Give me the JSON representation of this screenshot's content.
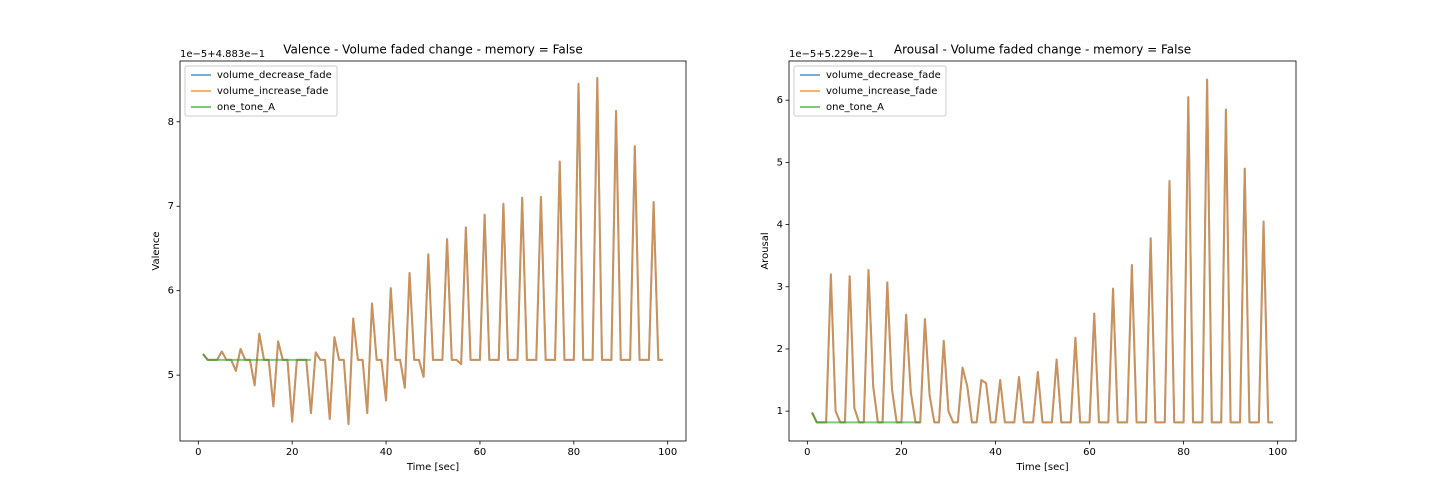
{
  "chart_data": [
    {
      "type": "line",
      "title": "Valence - Volume faded change - memory = False",
      "offset_text": "1e−5+4.883e−1",
      "xlabel": "Time [sec]",
      "ylabel": "Valence",
      "x": [
        1,
        2,
        3,
        4,
        5,
        6,
        7,
        8,
        9,
        10,
        11,
        12,
        13,
        14,
        15,
        16,
        17,
        18,
        19,
        20,
        21,
        22,
        23,
        24,
        25,
        26,
        27,
        28,
        29,
        30,
        31,
        32,
        33,
        34,
        35,
        36,
        37,
        38,
        39,
        40,
        41,
        42,
        43,
        44,
        45,
        46,
        47,
        48,
        49,
        50,
        51,
        52,
        53,
        54,
        55,
        56,
        57,
        58,
        59,
        60,
        61,
        62,
        63,
        64,
        65,
        66,
        67,
        68,
        69,
        70,
        71,
        72,
        73,
        74,
        75,
        76,
        77,
        78,
        79,
        80,
        81,
        82,
        83,
        84,
        85,
        86,
        87,
        88,
        89,
        90,
        91,
        92,
        93,
        94,
        95,
        96,
        97,
        98,
        99
      ],
      "series": [
        {
          "name": "volume_decrease_fade",
          "color": "#1f77b4",
          "values": [
            5.25,
            5.18,
            5.18,
            5.18,
            5.28,
            5.18,
            5.18,
            5.05,
            5.31,
            5.18,
            5.18,
            4.88,
            5.49,
            5.18,
            5.18,
            4.63,
            5.4,
            5.18,
            5.18,
            4.45,
            5.18,
            5.18,
            5.18,
            4.55,
            5.27,
            5.18,
            5.18,
            4.48,
            5.45,
            5.18,
            5.18,
            4.42,
            5.67,
            5.18,
            5.18,
            4.55,
            5.85,
            5.18,
            5.18,
            4.7,
            6.03,
            5.18,
            5.18,
            4.85,
            6.21,
            5.18,
            5.18,
            4.98,
            6.43,
            5.18,
            5.18,
            5.18,
            6.61,
            5.18,
            5.18,
            5.13,
            6.75,
            5.18,
            5.18,
            5.18,
            6.9,
            5.18,
            5.18,
            5.18,
            7.03,
            5.18,
            5.18,
            5.18,
            7.1,
            5.18,
            5.18,
            5.18,
            7.11,
            5.18,
            5.18,
            5.18,
            7.53,
            5.18,
            5.18,
            5.18,
            8.45,
            5.18,
            5.18,
            5.18,
            8.52,
            5.18,
            5.18,
            5.18,
            8.13,
            5.18,
            5.18,
            5.18,
            7.71,
            5.18,
            5.18,
            5.18,
            7.05,
            5.18,
            5.18
          ]
        },
        {
          "name": "volume_increase_fade",
          "color": "#ff7f0e",
          "values": [
            5.25,
            5.18,
            5.18,
            5.18,
            5.28,
            5.18,
            5.18,
            5.05,
            5.31,
            5.18,
            5.18,
            4.88,
            5.49,
            5.18,
            5.18,
            4.63,
            5.4,
            5.18,
            5.18,
            4.45,
            5.18,
            5.18,
            5.18,
            4.55,
            5.27,
            5.18,
            5.18,
            4.48,
            5.45,
            5.18,
            5.18,
            4.42,
            5.67,
            5.18,
            5.18,
            4.55,
            5.85,
            5.18,
            5.18,
            4.7,
            6.03,
            5.18,
            5.18,
            4.85,
            6.21,
            5.18,
            5.18,
            4.98,
            6.43,
            5.18,
            5.18,
            5.18,
            6.61,
            5.18,
            5.18,
            5.13,
            6.75,
            5.18,
            5.18,
            5.18,
            6.9,
            5.18,
            5.18,
            5.18,
            7.03,
            5.18,
            5.18,
            5.18,
            7.1,
            5.18,
            5.18,
            5.18,
            7.11,
            5.18,
            5.18,
            5.18,
            7.53,
            5.18,
            5.18,
            5.18,
            8.45,
            5.18,
            5.18,
            5.18,
            8.52,
            5.18,
            5.18,
            5.18,
            8.13,
            5.18,
            5.18,
            5.18,
            7.71,
            5.18,
            5.18,
            5.18,
            7.05,
            5.18,
            5.18
          ]
        },
        {
          "name": "one_tone_A",
          "color": "#2ca02c",
          "values": [
            5.25,
            5.18,
            5.18,
            5.18,
            5.18,
            5.18,
            5.18,
            5.18,
            5.18,
            5.18,
            5.18,
            5.18,
            5.18,
            5.18,
            5.18,
            5.18,
            5.18,
            5.18,
            5.18,
            5.18,
            5.18,
            5.18,
            5.18,
            5.18,
            null,
            null,
            null,
            null,
            null,
            null,
            null,
            null,
            null,
            null,
            null,
            null,
            null,
            null,
            null,
            null,
            null,
            null,
            null,
            null,
            null,
            null,
            null,
            null,
            null,
            null,
            null,
            null,
            null,
            null,
            null,
            null,
            null,
            null,
            null,
            null,
            null,
            null,
            null,
            null,
            null,
            null,
            null,
            null,
            null,
            null,
            null,
            null,
            null,
            null,
            null,
            null,
            null,
            null,
            null,
            null,
            null,
            null,
            null,
            null,
            null,
            null,
            null,
            null,
            null,
            null,
            null,
            null,
            null,
            null,
            null,
            null,
            null,
            null,
            null
          ]
        }
      ],
      "xlim": [
        -3.9,
        103.9
      ],
      "ylim": [
        4.22,
        8.72
      ],
      "xticks": [
        0,
        20,
        40,
        60,
        80,
        100
      ],
      "yticks": [
        5,
        6,
        7,
        8
      ],
      "legend": "upper left"
    },
    {
      "type": "line",
      "title": "Arousal - Volume faded change - memory = False",
      "offset_text": "1e−5+5.229e−1",
      "xlabel": "Time [sec]",
      "ylabel": "Arousal",
      "x": [
        1,
        2,
        3,
        4,
        5,
        6,
        7,
        8,
        9,
        10,
        11,
        12,
        13,
        14,
        15,
        16,
        17,
        18,
        19,
        20,
        21,
        22,
        23,
        24,
        25,
        26,
        27,
        28,
        29,
        30,
        31,
        32,
        33,
        34,
        35,
        36,
        37,
        38,
        39,
        40,
        41,
        42,
        43,
        44,
        45,
        46,
        47,
        48,
        49,
        50,
        51,
        52,
        53,
        54,
        55,
        56,
        57,
        58,
        59,
        60,
        61,
        62,
        63,
        64,
        65,
        66,
        67,
        68,
        69,
        70,
        71,
        72,
        73,
        74,
        75,
        76,
        77,
        78,
        79,
        80,
        81,
        82,
        83,
        84,
        85,
        86,
        87,
        88,
        89,
        90,
        91,
        92,
        93,
        94,
        95,
        96,
        97,
        98,
        99
      ],
      "series": [
        {
          "name": "volume_decrease_fade",
          "color": "#1f77b4",
          "values": [
            0.98,
            0.82,
            0.82,
            0.82,
            3.2,
            1.0,
            0.82,
            0.82,
            3.17,
            1.05,
            0.82,
            0.82,
            3.27,
            1.4,
            0.82,
            0.82,
            3.07,
            1.35,
            0.82,
            0.82,
            2.55,
            1.3,
            0.82,
            0.82,
            2.48,
            1.25,
            0.82,
            0.82,
            2.13,
            1.0,
            0.82,
            0.82,
            1.7,
            1.4,
            0.82,
            0.82,
            1.5,
            1.45,
            0.82,
            0.82,
            1.5,
            0.82,
            0.82,
            0.82,
            1.55,
            0.82,
            0.82,
            0.82,
            1.63,
            0.82,
            0.82,
            0.82,
            1.83,
            0.82,
            0.82,
            0.82,
            2.18,
            0.82,
            0.82,
            0.82,
            2.57,
            0.82,
            0.82,
            0.82,
            2.97,
            0.82,
            0.82,
            0.82,
            3.35,
            0.82,
            0.82,
            0.82,
            3.78,
            0.82,
            0.82,
            0.82,
            4.7,
            0.82,
            0.82,
            0.82,
            6.05,
            0.82,
            0.82,
            0.82,
            6.33,
            0.82,
            0.82,
            0.82,
            5.85,
            0.82,
            0.82,
            0.82,
            4.9,
            0.82,
            0.82,
            0.82,
            4.05,
            0.82,
            0.82
          ]
        },
        {
          "name": "volume_increase_fade",
          "color": "#ff7f0e",
          "values": [
            0.98,
            0.82,
            0.82,
            0.82,
            3.2,
            1.0,
            0.82,
            0.82,
            3.17,
            1.05,
            0.82,
            0.82,
            3.27,
            1.4,
            0.82,
            0.82,
            3.07,
            1.35,
            0.82,
            0.82,
            2.55,
            1.3,
            0.82,
            0.82,
            2.48,
            1.25,
            0.82,
            0.82,
            2.13,
            1.0,
            0.82,
            0.82,
            1.7,
            1.4,
            0.82,
            0.82,
            1.5,
            1.45,
            0.82,
            0.82,
            1.5,
            0.82,
            0.82,
            0.82,
            1.55,
            0.82,
            0.82,
            0.82,
            1.63,
            0.82,
            0.82,
            0.82,
            1.83,
            0.82,
            0.82,
            0.82,
            2.18,
            0.82,
            0.82,
            0.82,
            2.57,
            0.82,
            0.82,
            0.82,
            2.97,
            0.82,
            0.82,
            0.82,
            3.35,
            0.82,
            0.82,
            0.82,
            3.78,
            0.82,
            0.82,
            0.82,
            4.7,
            0.82,
            0.82,
            0.82,
            6.05,
            0.82,
            0.82,
            0.82,
            6.33,
            0.82,
            0.82,
            0.82,
            5.85,
            0.82,
            0.82,
            0.82,
            4.9,
            0.82,
            0.82,
            0.82,
            4.05,
            0.82,
            0.82
          ]
        },
        {
          "name": "one_tone_A",
          "color": "#2ca02c",
          "values": [
            0.98,
            0.82,
            0.82,
            0.82,
            0.82,
            0.82,
            0.82,
            0.82,
            0.82,
            0.82,
            0.82,
            0.82,
            0.82,
            0.82,
            0.82,
            0.82,
            0.82,
            0.82,
            0.82,
            0.82,
            0.82,
            0.82,
            0.82,
            0.82,
            null,
            null,
            null,
            null,
            null,
            null,
            null,
            null,
            null,
            null,
            null,
            null,
            null,
            null,
            null,
            null,
            null,
            null,
            null,
            null,
            null,
            null,
            null,
            null,
            null,
            null,
            null,
            null,
            null,
            null,
            null,
            null,
            null,
            null,
            null,
            null,
            null,
            null,
            null,
            null,
            null,
            null,
            null,
            null,
            null,
            null,
            null,
            null,
            null,
            null,
            null,
            null,
            null,
            null,
            null,
            null,
            null,
            null,
            null,
            null,
            null,
            null,
            null,
            null,
            null,
            null,
            null,
            null,
            null,
            null,
            null,
            null,
            null,
            null,
            null
          ]
        }
      ],
      "xlim": [
        -3.9,
        103.9
      ],
      "ylim": [
        0.52,
        6.63
      ],
      "xticks": [
        0,
        20,
        40,
        60,
        80,
        100
      ],
      "yticks": [
        1,
        2,
        3,
        4,
        5,
        6
      ],
      "legend": "upper left"
    }
  ]
}
